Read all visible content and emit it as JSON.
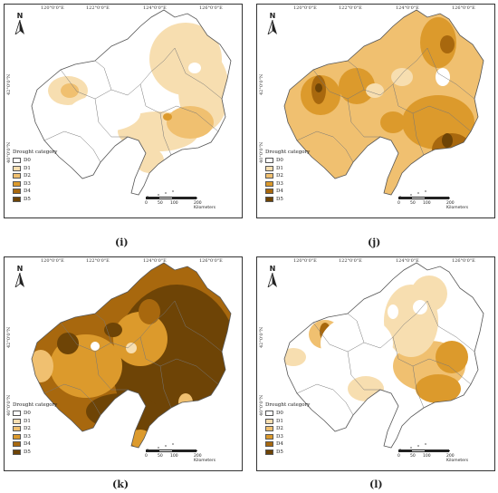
{
  "panels": [
    {
      "id": "i",
      "caption": "(i)",
      "lon_labels": [
        "120°0'0\"E",
        "122°0'0\"E",
        "124°0'0\"E",
        "126°0'0\"E"
      ],
      "lat_labels": [
        "42°0'0\"N",
        "40°0'0\"N"
      ]
    },
    {
      "id": "j",
      "caption": "(j)",
      "lon_labels": [
        "120°0'0\"E",
        "122°0'0\"E",
        "124°0'0\"E",
        "126°0'0\"E"
      ],
      "lat_labels": [
        "42°0'0\"N",
        "40°0'0\"N"
      ]
    },
    {
      "id": "k",
      "caption": "(k)",
      "lon_labels": [
        "120°0'0\"E",
        "122°0'0\"E",
        "124°0'0\"E",
        "126°0'0\"E"
      ],
      "lat_labels": [
        "42°0'0\"N",
        "40°0'0\"N"
      ]
    },
    {
      "id": "l",
      "caption": "(l)",
      "lon_labels": [
        "120°0'0\"E",
        "122°0'0\"E",
        "124°0'0\"E",
        "126°0'0\"E"
      ],
      "lat_labels": [
        "42°0'0\"N",
        "40°0'0\"N"
      ]
    }
  ],
  "north_label": "N",
  "legend": {
    "title": "Drought category",
    "items": [
      {
        "label": "D0",
        "color": "#ffffff"
      },
      {
        "label": "D1",
        "color": "#f7deb0"
      },
      {
        "label": "D2",
        "color": "#f0c070"
      },
      {
        "label": "D3",
        "color": "#dc9a2c"
      },
      {
        "label": "D4",
        "color": "#a8680e"
      },
      {
        "label": "D5",
        "color": "#6e4406"
      }
    ]
  },
  "scale": {
    "ticks": [
      "0",
      "50",
      "100",
      "200 Kilometers"
    ]
  }
}
